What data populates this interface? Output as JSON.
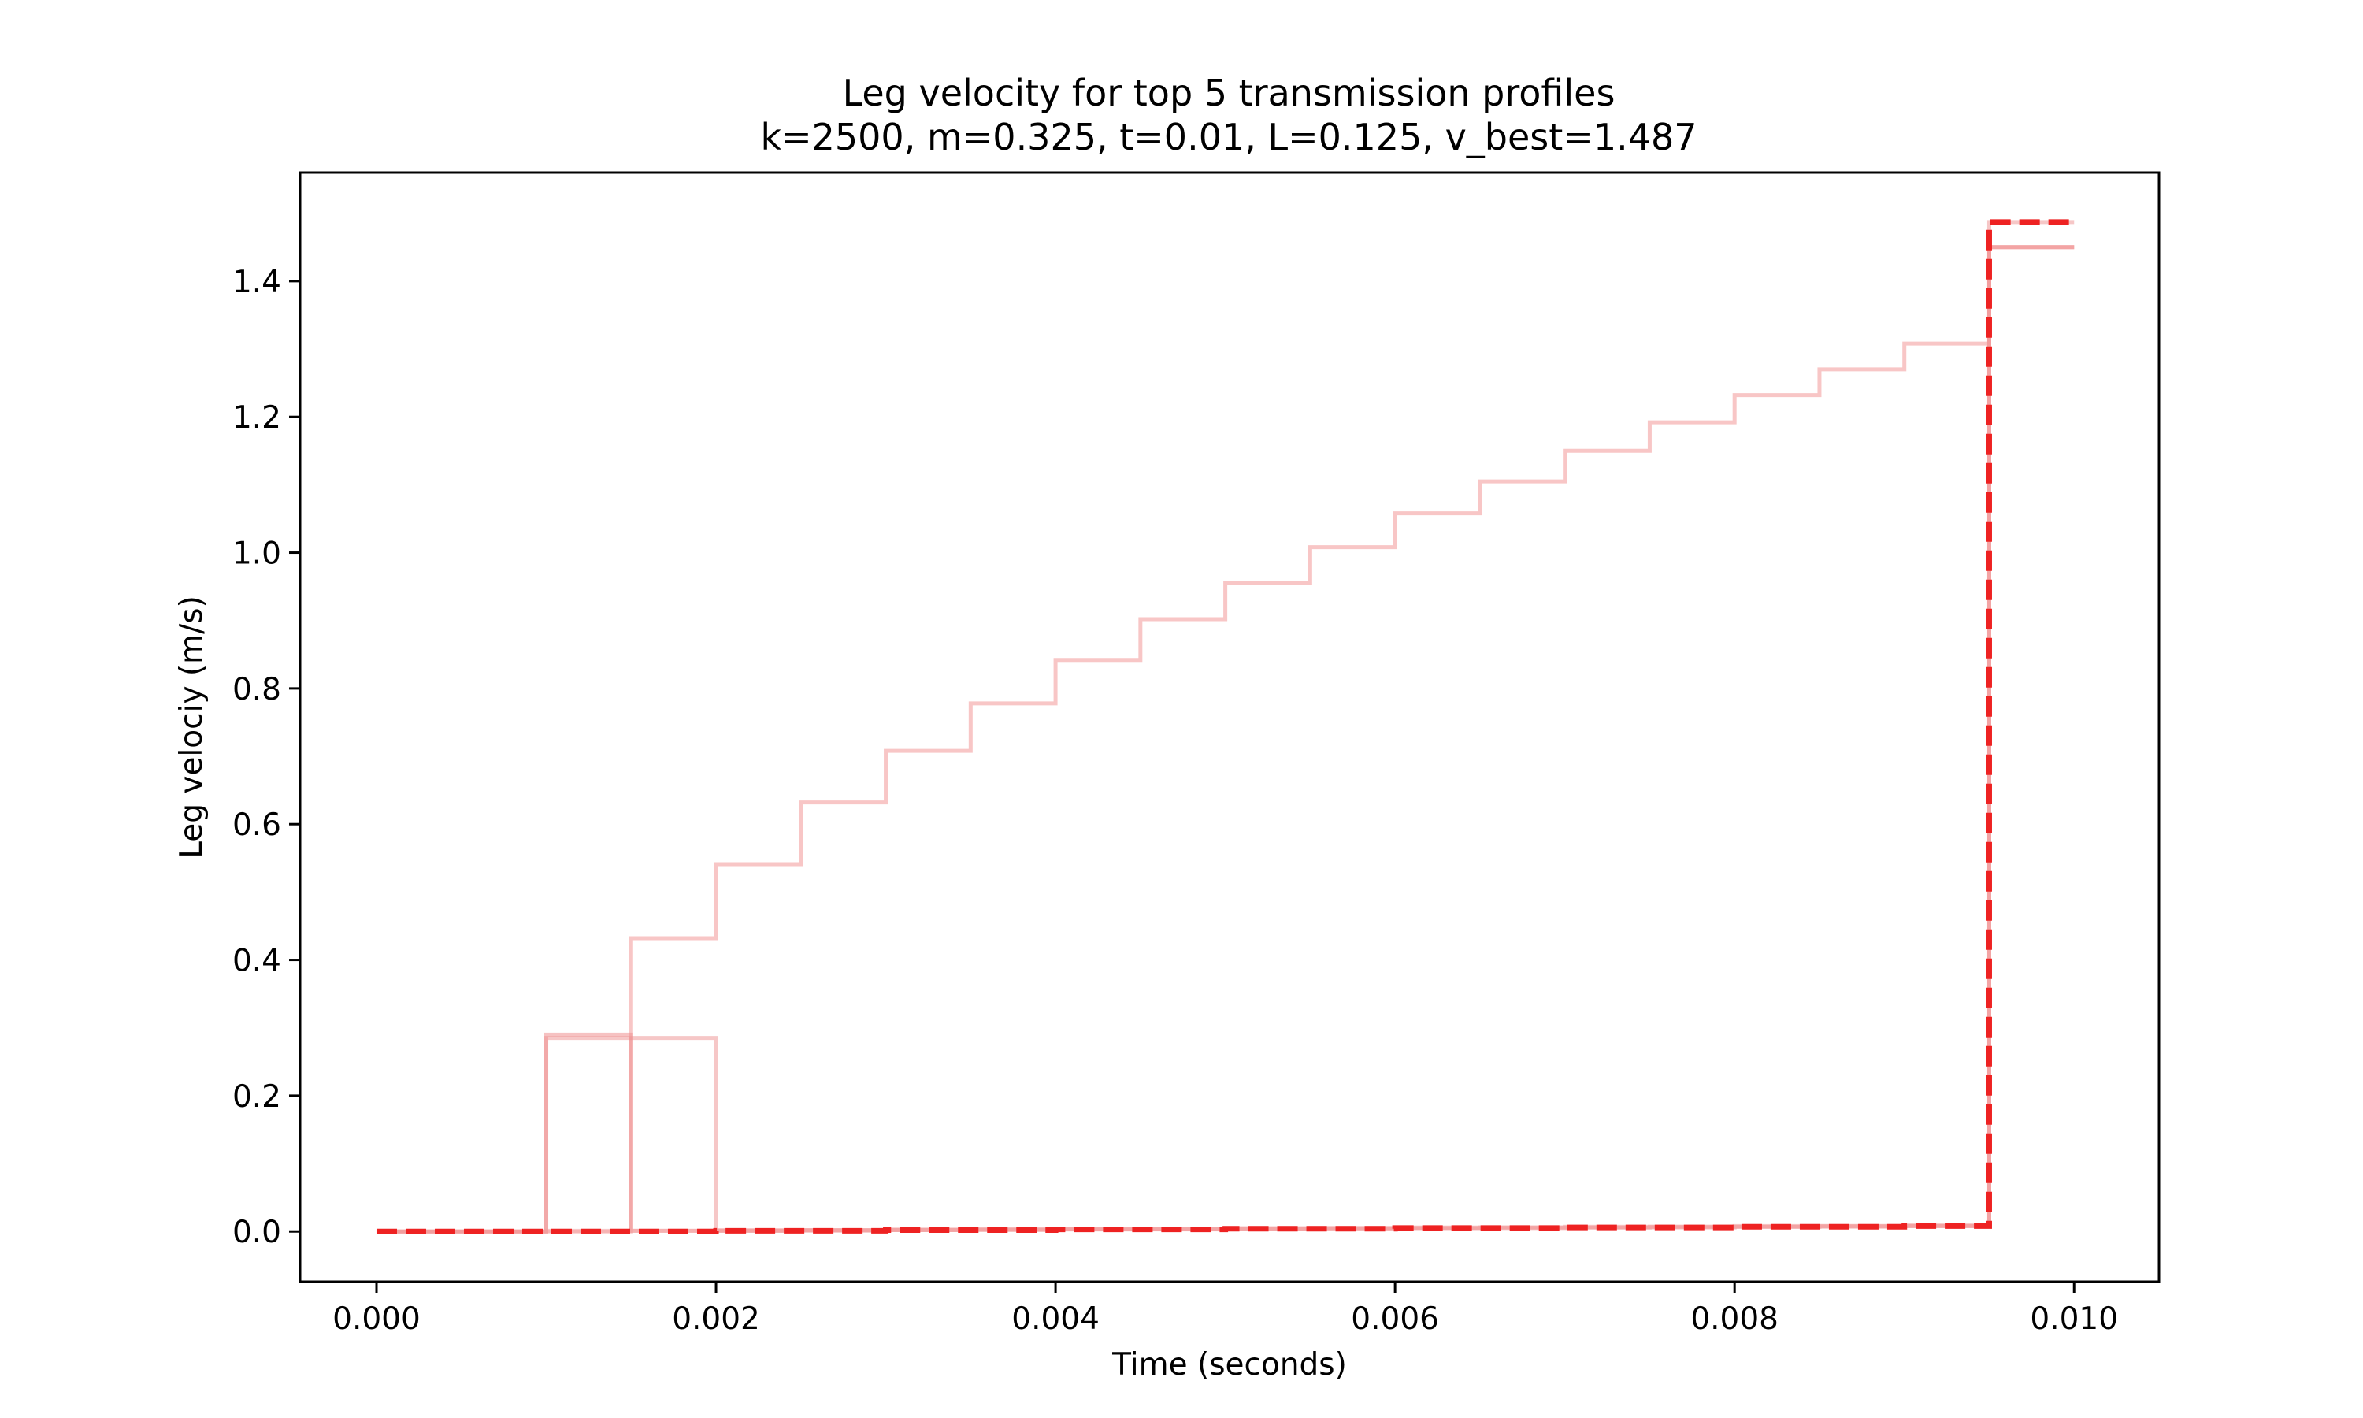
{
  "chart_data": {
    "type": "line",
    "title": "Leg velocity for top 5 transmission profiles",
    "subtitle": "k=2500, m=0.325, t=0.01, L=0.125, v_best=1.487",
    "xlabel": "Time (seconds)",
    "ylabel": "Leg velociy (m/s)",
    "xlim": [
      -0.00045,
      0.0105
    ],
    "ylim": [
      -0.074,
      1.56
    ],
    "xticks": [
      "0.000",
      "0.002",
      "0.004",
      "0.006",
      "0.008",
      "0.010"
    ],
    "yticks": [
      "0.0",
      "0.2",
      "0.4",
      "0.6",
      "0.8",
      "1.0",
      "1.2",
      "1.4"
    ],
    "grid": false,
    "legend": false,
    "series": [
      {
        "style": "step",
        "color": "#f4a0a0",
        "opacity": 0.6,
        "dashed": false,
        "x": [
          0,
          0.0005,
          0.001,
          0.0015,
          0.002,
          0.0025,
          0.003,
          0.0035,
          0.004,
          0.0045,
          0.005,
          0.0055,
          0.006,
          0.0065,
          0.007,
          0.0075,
          0.008,
          0.0085,
          0.009,
          0.0095,
          0.01
        ],
        "y": [
          0,
          0,
          0,
          0.432,
          0.541,
          0.632,
          0.708,
          0.778,
          0.842,
          0.902,
          0.956,
          1.008,
          1.058,
          1.105,
          1.15,
          1.192,
          1.232,
          1.27,
          1.308,
          1.45,
          1.45
        ]
      },
      {
        "style": "step",
        "color": "#ee8f8f",
        "opacity": 0.55,
        "dashed": false,
        "x": [
          0,
          0.0005,
          0.001,
          0.0015,
          0.002,
          0.0025,
          0.003,
          0.0035,
          0.004,
          0.0045,
          0.005,
          0.0055,
          0.006,
          0.0065,
          0.007,
          0.0075,
          0.008,
          0.0085,
          0.009,
          0.0095,
          0.01
        ],
        "y": [
          0,
          0,
          0.29,
          0.001,
          0.001,
          0.002,
          0.002,
          0.003,
          0.003,
          0.004,
          0.004,
          0.005,
          0.005,
          0.006,
          0.006,
          0.007,
          0.007,
          0.008,
          0.008,
          1.45,
          1.45
        ]
      },
      {
        "style": "step",
        "color": "#ee8f8f",
        "opacity": 0.5,
        "dashed": false,
        "x": [
          0,
          0.0005,
          0.001,
          0.0015,
          0.002,
          0.0025,
          0.003,
          0.0035,
          0.004,
          0.0045,
          0.005,
          0.0055,
          0.006,
          0.0065,
          0.007,
          0.0075,
          0.008,
          0.0085,
          0.009,
          0.0095,
          0.01
        ],
        "y": [
          0,
          0,
          0.285,
          0.285,
          0.001,
          0.001,
          0.002,
          0.002,
          0.003,
          0.003,
          0.004,
          0.004,
          0.005,
          0.005,
          0.006,
          0.006,
          0.007,
          0.007,
          0.008,
          1.487,
          1.487
        ]
      },
      {
        "style": "step",
        "color": "#f4a0a0",
        "opacity": 0.5,
        "dashed": false,
        "x": [
          0,
          0.0005,
          0.001,
          0.0015,
          0.002,
          0.0025,
          0.003,
          0.0035,
          0.004,
          0.0045,
          0.005,
          0.0055,
          0.006,
          0.0065,
          0.007,
          0.0075,
          0.008,
          0.0085,
          0.009,
          0.0095,
          0.01
        ],
        "y": [
          0,
          0,
          0.001,
          0.001,
          0.002,
          0.002,
          0.003,
          0.003,
          0.004,
          0.004,
          0.005,
          0.005,
          0.006,
          0.006,
          0.007,
          0.007,
          0.008,
          0.008,
          0.009,
          1.45,
          1.45
        ]
      },
      {
        "style": "step",
        "color": "#ee2222",
        "opacity": 1,
        "dashed": true,
        "x": [
          0,
          0.0005,
          0.001,
          0.0015,
          0.002,
          0.0025,
          0.003,
          0.0035,
          0.004,
          0.0045,
          0.005,
          0.0055,
          0.006,
          0.0065,
          0.007,
          0.0075,
          0.008,
          0.0085,
          0.009,
          0.0095,
          0.01
        ],
        "y": [
          0,
          0,
          0,
          0,
          0.001,
          0.001,
          0.002,
          0.002,
          0.003,
          0.003,
          0.004,
          0.004,
          0.005,
          0.005,
          0.006,
          0.006,
          0.007,
          0.007,
          0.008,
          1.487,
          1.487
        ]
      }
    ]
  }
}
